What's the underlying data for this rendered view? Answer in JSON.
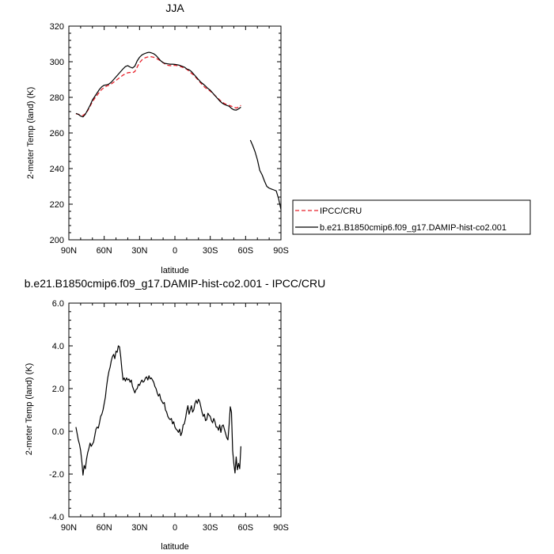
{
  "chart_data": [
    {
      "type": "line",
      "title": "JJA",
      "xlabel": "latitude",
      "ylabel": "2-meter Temp (land) (K)",
      "xlim": [
        90,
        -90
      ],
      "ylim": [
        200,
        320
      ],
      "x_ticks": [
        90,
        60,
        30,
        0,
        -30,
        -60,
        -90
      ],
      "x_tick_labels": [
        "90N",
        "60N",
        "30N",
        "0",
        "30S",
        "60S",
        "90S"
      ],
      "y_ticks": [
        200,
        220,
        240,
        260,
        280,
        300,
        320
      ],
      "y_tick_labels": [
        "200",
        "220",
        "240",
        "260",
        "280",
        "300",
        "320"
      ],
      "grid": false,
      "legend_position": "right",
      "series": [
        {
          "name": "IPCC/CRU",
          "color": "#e8202a",
          "dash": true,
          "x": [
            84,
            82,
            80,
            78,
            76,
            74,
            72,
            70,
            68,
            66,
            64,
            62,
            60,
            58,
            56,
            54,
            52,
            50,
            48,
            46,
            44,
            42,
            40,
            38,
            36,
            34,
            32,
            30,
            28,
            26,
            24,
            22,
            20,
            18,
            16,
            14,
            12,
            10,
            8,
            6,
            4,
            2,
            0,
            -2,
            -4,
            -6,
            -8,
            -10,
            -12,
            -14,
            -16,
            -18,
            -20,
            -22,
            -24,
            -26,
            -28,
            -30,
            -32,
            -34,
            -36,
            -38,
            -40,
            -42,
            -44,
            -46,
            -48,
            -50,
            -52,
            -54,
            -56
          ],
          "y": [
            270.8,
            270.5,
            270.0,
            269.8,
            270.8,
            272.5,
            275.0,
            277.5,
            279.5,
            281.2,
            283.0,
            284.5,
            285.5,
            286.3,
            286.8,
            287.5,
            288.5,
            289.5,
            290.5,
            291.5,
            292.5,
            293.2,
            293.8,
            294.0,
            293.8,
            294.5,
            297.0,
            299.5,
            301.0,
            302.0,
            302.5,
            302.8,
            302.8,
            302.5,
            302.0,
            301.2,
            300.5,
            299.5,
            298.5,
            298.0,
            297.8,
            297.8,
            298.0,
            297.8,
            297.5,
            297.0,
            296.5,
            295.8,
            294.8,
            293.5,
            292.5,
            291.0,
            289.5,
            288.0,
            286.5,
            285.3,
            284.5,
            283.5,
            282.3,
            281.0,
            279.8,
            278.5,
            277.5,
            276.5,
            276.0,
            275.5,
            275.0,
            274.5,
            274.0,
            274.5,
            275.5
          ]
        },
        {
          "name": "b.e21.B1850cmip6.f09_g17.DAMIP-hist-co2.001",
          "color": "#000000",
          "dash": false,
          "x": [
            84,
            82,
            80,
            78,
            76,
            74,
            72,
            70,
            68,
            66,
            64,
            62,
            60,
            58,
            56,
            54,
            52,
            50,
            48,
            46,
            44,
            42,
            40,
            38,
            36,
            34,
            32,
            30,
            28,
            26,
            24,
            22,
            20,
            18,
            16,
            14,
            12,
            10,
            8,
            6,
            4,
            2,
            0,
            -2,
            -4,
            -6,
            -8,
            -10,
            -12,
            -14,
            -16,
            -18,
            -20,
            -22,
            -24,
            -26,
            -28,
            -30,
            -32,
            -34,
            -36,
            -38,
            -40,
            -42,
            -44,
            -46,
            -48,
            -50,
            -52,
            -54,
            -56,
            null,
            -64,
            -66,
            -68,
            -70,
            -72,
            -74,
            -76,
            -78,
            -80,
            -82,
            -84,
            -86,
            -88,
            -90
          ],
          "y": [
            271.0,
            270.5,
            269.5,
            269.0,
            270.5,
            273.0,
            275.5,
            278.5,
            280.5,
            282.5,
            284.5,
            286.0,
            286.8,
            287.0,
            287.5,
            288.5,
            290.0,
            291.5,
            293.0,
            294.5,
            296.0,
            297.3,
            297.8,
            297.0,
            296.5,
            297.5,
            300.5,
            302.5,
            303.8,
            304.5,
            305.0,
            305.3,
            305.0,
            304.5,
            303.5,
            302.0,
            300.5,
            299.5,
            299.0,
            298.8,
            298.6,
            298.6,
            298.5,
            298.3,
            298.0,
            297.5,
            297.0,
            296.0,
            295.5,
            294.5,
            293.0,
            291.5,
            290.0,
            288.5,
            287.5,
            286.3,
            285.0,
            284.0,
            282.5,
            281.0,
            279.5,
            278.0,
            276.8,
            276.0,
            275.5,
            275.0,
            273.8,
            273.0,
            272.8,
            273.5,
            274.5,
            null,
            256.0,
            253.0,
            249.5,
            245.0,
            239.0,
            236.5,
            233.0,
            230.0,
            229.0,
            228.5,
            228.0,
            227.5,
            223.0,
            217.0
          ]
        }
      ]
    },
    {
      "type": "line",
      "title": "b.e21.B1850cmip6.f09_g17.DAMIP-hist-co2.001 - IPCC/CRU",
      "xlabel": "latitude",
      "ylabel": "2-meter Temp (land) (K)",
      "xlim": [
        90,
        -90
      ],
      "ylim": [
        -4,
        6
      ],
      "x_ticks": [
        90,
        60,
        30,
        0,
        -30,
        -60,
        -90
      ],
      "x_tick_labels": [
        "90N",
        "60N",
        "30N",
        "0",
        "30S",
        "60S",
        "90S"
      ],
      "y_ticks": [
        -4,
        -2,
        0,
        2,
        4,
        6
      ],
      "y_tick_labels": [
        "-4.0",
        "-2.0",
        "0.0",
        "2.0",
        "4.0",
        "6.0"
      ],
      "grid": false,
      "series": [
        {
          "color": "#000000",
          "dash": false,
          "x": [
            84,
            83,
            82,
            81,
            80,
            79,
            78,
            77,
            76,
            75,
            74,
            73,
            72,
            71,
            70,
            69,
            68,
            67,
            66,
            65,
            64,
            63,
            62,
            61,
            60,
            59,
            58,
            57,
            56,
            55,
            54,
            53,
            52,
            51,
            50,
            49,
            48,
            47,
            46,
            45,
            44,
            43,
            42,
            41,
            40,
            39,
            38,
            37,
            36,
            35,
            34,
            33,
            32,
            31,
            30,
            29,
            28,
            27,
            26,
            25,
            24,
            23,
            22,
            21,
            20,
            19,
            18,
            17,
            16,
            15,
            14,
            13,
            12,
            11,
            10,
            9,
            8,
            7,
            6,
            5,
            4,
            3,
            2,
            1,
            0,
            -1,
            -2,
            -3,
            -4,
            -5,
            -6,
            -7,
            -8,
            -9,
            -10,
            -11,
            -12,
            -13,
            -14,
            -15,
            -16,
            -17,
            -18,
            -19,
            -20,
            -21,
            -22,
            -23,
            -24,
            -25,
            -26,
            -27,
            -28,
            -29,
            -30,
            -31,
            -32,
            -33,
            -34,
            -35,
            -36,
            -37,
            -38,
            -39,
            -40,
            -41,
            -42,
            -43,
            -44,
            -45,
            -46,
            -47,
            -48,
            -49,
            -50,
            -51,
            -52,
            -53,
            -54,
            -55,
            -56
          ],
          "y": [
            0.2,
            -0.1,
            -0.4,
            -0.6,
            -0.9,
            -1.4,
            -2.05,
            -1.6,
            -1.75,
            -1.3,
            -1.0,
            -0.8,
            -0.55,
            -0.7,
            -0.6,
            -0.5,
            -0.2,
            0.1,
            0.2,
            0.15,
            0.4,
            0.7,
            0.8,
            1.0,
            1.3,
            1.6,
            2.1,
            2.5,
            2.8,
            3.0,
            3.3,
            3.5,
            3.6,
            3.4,
            3.75,
            3.7,
            4.0,
            3.95,
            3.5,
            2.9,
            2.4,
            2.5,
            2.35,
            2.5,
            2.4,
            2.45,
            2.3,
            2.4,
            2.1,
            1.95,
            1.8,
            1.95,
            2.0,
            2.2,
            2.15,
            2.3,
            2.4,
            2.3,
            2.35,
            2.5,
            2.55,
            2.4,
            2.6,
            2.45,
            2.5,
            2.4,
            2.3,
            2.1,
            2.0,
            1.8,
            1.65,
            1.75,
            1.5,
            1.4,
            1.3,
            1.35,
            1.0,
            0.9,
            0.7,
            0.6,
            0.55,
            0.6,
            0.35,
            0.45,
            0.2,
            0.1,
            0.05,
            -0.05,
            0.1,
            -0.2,
            -0.05,
            0.3,
            0.35,
            0.6,
            0.95,
            1.2,
            0.8,
            1.0,
            1.2,
            0.9,
            1.0,
            1.3,
            1.45,
            1.3,
            1.5,
            1.4,
            1.15,
            0.9,
            0.7,
            0.8,
            0.5,
            0.55,
            0.85,
            0.75,
            0.7,
            0.5,
            0.4,
            0.6,
            0.45,
            0.2,
            0.2,
            0.05,
            0.3,
            -0.05,
            0.25,
            0.3,
            0.1,
            -0.1,
            -0.3,
            -0.4,
            0.3,
            1.15,
            0.9,
            -0.9,
            -1.5,
            -1.95,
            -1.2,
            -1.8,
            -1.5,
            -1.75,
            -0.7
          ]
        }
      ]
    }
  ]
}
